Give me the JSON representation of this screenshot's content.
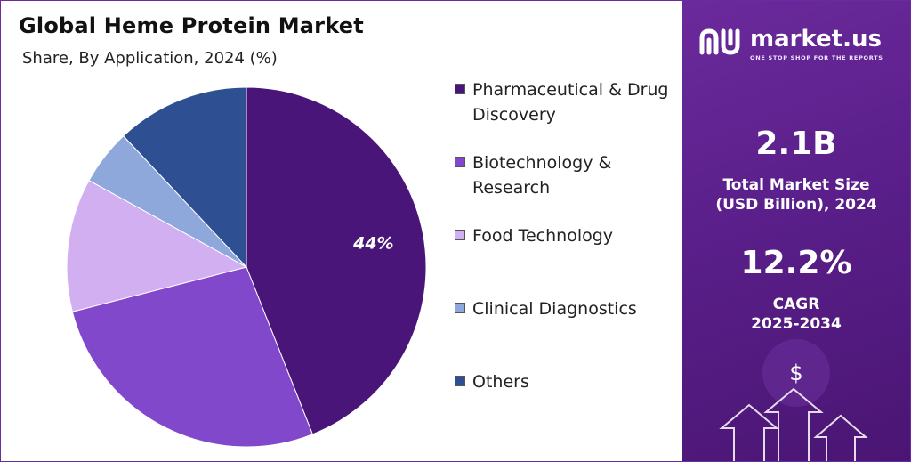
{
  "chart_data": {
    "type": "pie",
    "title": "Global Heme Protein Market",
    "subtitle": "Share, By Application, 2024 (%)",
    "series": [
      {
        "name": "Pharmaceutical & Drug Discovery",
        "value": 44,
        "color": "#4a1578",
        "label": "44%"
      },
      {
        "name": "Biotechnology & Research",
        "value": 27,
        "color": "#8248cc",
        "label": ""
      },
      {
        "name": "Food Technology",
        "value": 12,
        "color": "#d2aff0",
        "label": ""
      },
      {
        "name": "Clinical Diagnostics",
        "value": 5,
        "color": "#8fa8dc",
        "label": ""
      },
      {
        "name": "Others",
        "value": 12,
        "color": "#2e4f92",
        "label": ""
      }
    ],
    "legend_position": "right"
  },
  "legend": {
    "items": [
      {
        "line1": "Pharmaceutical & Drug",
        "line2": "Discovery"
      },
      {
        "line1": "Biotechnology &",
        "line2": "Research"
      },
      {
        "line1": "Food Technology",
        "line2": ""
      },
      {
        "line1": "Clinical Diagnostics",
        "line2": ""
      },
      {
        "line1": "Others",
        "line2": ""
      }
    ]
  },
  "brand": {
    "name": "market.us",
    "tagline": "ONE STOP SHOP FOR THE REPORTS",
    "icon": "market-us-logo-icon",
    "panel_color": "#5a1f8a"
  },
  "stats": {
    "market_size_value": "2.1B",
    "market_size_label_1": "Total Market Size",
    "market_size_label_2": "(USD Billion), 2024",
    "cagr_value": "12.2%",
    "cagr_label_1": "CAGR",
    "cagr_label_2": "2025-2034"
  },
  "decor": {
    "dollar_symbol": "$",
    "icons": [
      "dollar-icon",
      "arrow-up-icon"
    ]
  }
}
